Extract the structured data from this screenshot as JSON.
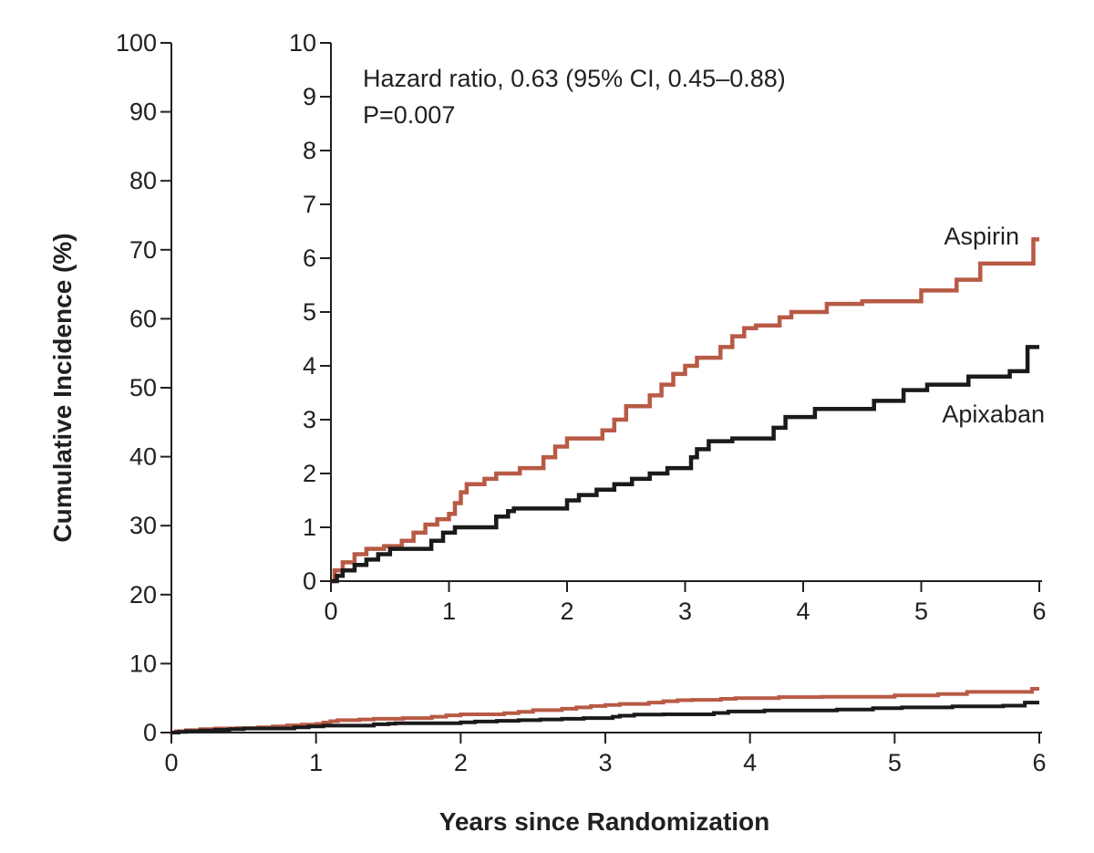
{
  "chart_data": {
    "type": "line",
    "step": true,
    "xlabel": "Years since Randomization",
    "ylabel": "Cumulative Incidence (%)",
    "annotations": {
      "hazard_ratio": "Hazard ratio, 0.63 (95% CI, 0.45–0.88)",
      "p_value": "P=0.007"
    },
    "colors": {
      "aspirin": "#b85a45",
      "apixaban": "#1a1a1a"
    },
    "main": {
      "xlim": [
        0,
        6
      ],
      "ylim": [
        0,
        100
      ],
      "xticks": [
        "0",
        "1",
        "2",
        "3",
        "4",
        "5",
        "6"
      ],
      "yticks": [
        "0",
        "10",
        "20",
        "30",
        "40",
        "50",
        "60",
        "70",
        "80",
        "90",
        "100"
      ]
    },
    "inset": {
      "xlim": [
        0,
        6
      ],
      "ylim": [
        0,
        10
      ],
      "xticks": [
        "0",
        "1",
        "2",
        "3",
        "4",
        "5",
        "6"
      ],
      "yticks": [
        "0",
        "1",
        "2",
        "3",
        "4",
        "5",
        "6",
        "7",
        "8",
        "9",
        "10"
      ]
    },
    "series": [
      {
        "name": "Aspirin",
        "color": "#b85a45",
        "x": [
          0,
          0.03,
          0.1,
          0.2,
          0.3,
          0.45,
          0.6,
          0.7,
          0.8,
          0.9,
          1.0,
          1.05,
          1.1,
          1.15,
          1.3,
          1.4,
          1.6,
          1.8,
          1.9,
          2.0,
          2.3,
          2.4,
          2.5,
          2.7,
          2.8,
          2.9,
          3.0,
          3.1,
          3.3,
          3.4,
          3.5,
          3.6,
          3.8,
          3.9,
          4.2,
          4.5,
          4.8,
          5.0,
          5.3,
          5.5,
          5.85,
          5.95
        ],
        "y": [
          0,
          0.2,
          0.35,
          0.5,
          0.6,
          0.65,
          0.75,
          0.9,
          1.05,
          1.15,
          1.25,
          1.45,
          1.65,
          1.8,
          1.9,
          2.0,
          2.1,
          2.3,
          2.5,
          2.65,
          2.8,
          3.0,
          3.25,
          3.45,
          3.65,
          3.85,
          4.0,
          4.15,
          4.35,
          4.55,
          4.7,
          4.75,
          4.9,
          5.0,
          5.15,
          5.2,
          5.2,
          5.4,
          5.6,
          5.9,
          5.9,
          6.35
        ]
      },
      {
        "name": "Apixaban",
        "color": "#1a1a1a",
        "x": [
          0,
          0.05,
          0.1,
          0.2,
          0.3,
          0.4,
          0.5,
          0.85,
          0.95,
          1.05,
          1.4,
          1.5,
          1.55,
          2.0,
          2.1,
          2.25,
          2.4,
          2.55,
          2.7,
          2.85,
          3.05,
          3.1,
          3.2,
          3.4,
          3.75,
          3.85,
          4.1,
          4.6,
          4.85,
          5.05,
          5.4,
          5.75,
          5.9
        ],
        "y": [
          0,
          0.1,
          0.2,
          0.3,
          0.4,
          0.5,
          0.6,
          0.75,
          0.9,
          1.0,
          1.2,
          1.3,
          1.35,
          1.5,
          1.6,
          1.7,
          1.8,
          1.9,
          2.0,
          2.1,
          2.3,
          2.45,
          2.6,
          2.65,
          2.85,
          3.05,
          3.2,
          3.35,
          3.55,
          3.65,
          3.8,
          3.9,
          4.35
        ]
      }
    ]
  }
}
